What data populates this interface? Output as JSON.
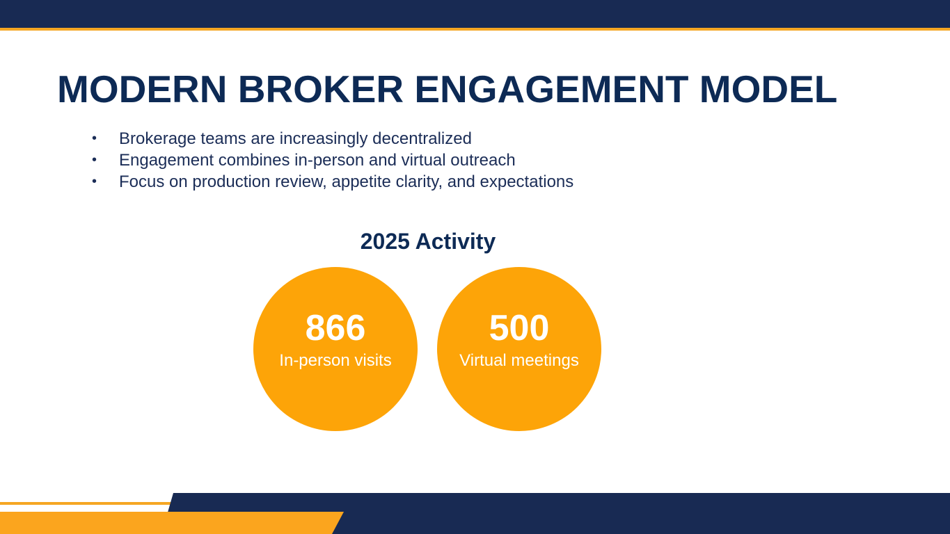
{
  "slide": {
    "title": "MODERN BROKER ENGAGEMENT MODEL",
    "bullets": [
      "Brokerage teams are increasingly decentralized",
      "Engagement combines in-person and virtual outreach",
      "Focus on production review, appetite clarity, and expectations"
    ],
    "activity_heading": "2025 Activity",
    "stats": [
      {
        "value": "866",
        "label": "In-person visits"
      },
      {
        "value": "500",
        "label": "Virtual meetings"
      }
    ]
  },
  "colors": {
    "navy": "#182a53",
    "title_navy": "#0d2a55",
    "orange": "#fda408",
    "accent_orange": "#f5a623"
  }
}
